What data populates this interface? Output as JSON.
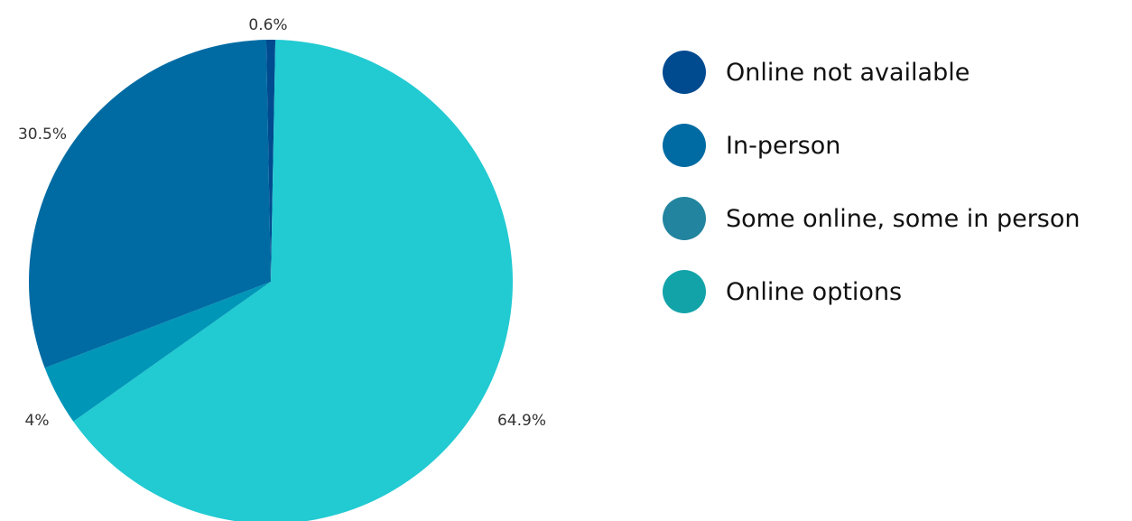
{
  "chart_data": {
    "type": "pie",
    "slices": [
      {
        "name": "Online not available",
        "value": 0.6,
        "label": "0.6%",
        "color": "#004a8f"
      },
      {
        "name": "Online options",
        "value": 64.9,
        "label": "64.9%",
        "color": "#22cad2"
      },
      {
        "name": "Some online, some in person",
        "value": 4.0,
        "label": "4%",
        "color": "#0096b8"
      },
      {
        "name": "In-person",
        "value": 30.5,
        "label": "30.5%",
        "color": "#006ba3"
      }
    ],
    "legend": {
      "placement": "right",
      "entries": [
        {
          "label": "Online not available",
          "color": "#004a8f"
        },
        {
          "label": "In-person",
          "color": "#006ba3"
        },
        {
          "label": "Some online, some in person",
          "color": "#23849f"
        },
        {
          "label": "Online options",
          "color": "#12a3a9"
        }
      ]
    }
  }
}
